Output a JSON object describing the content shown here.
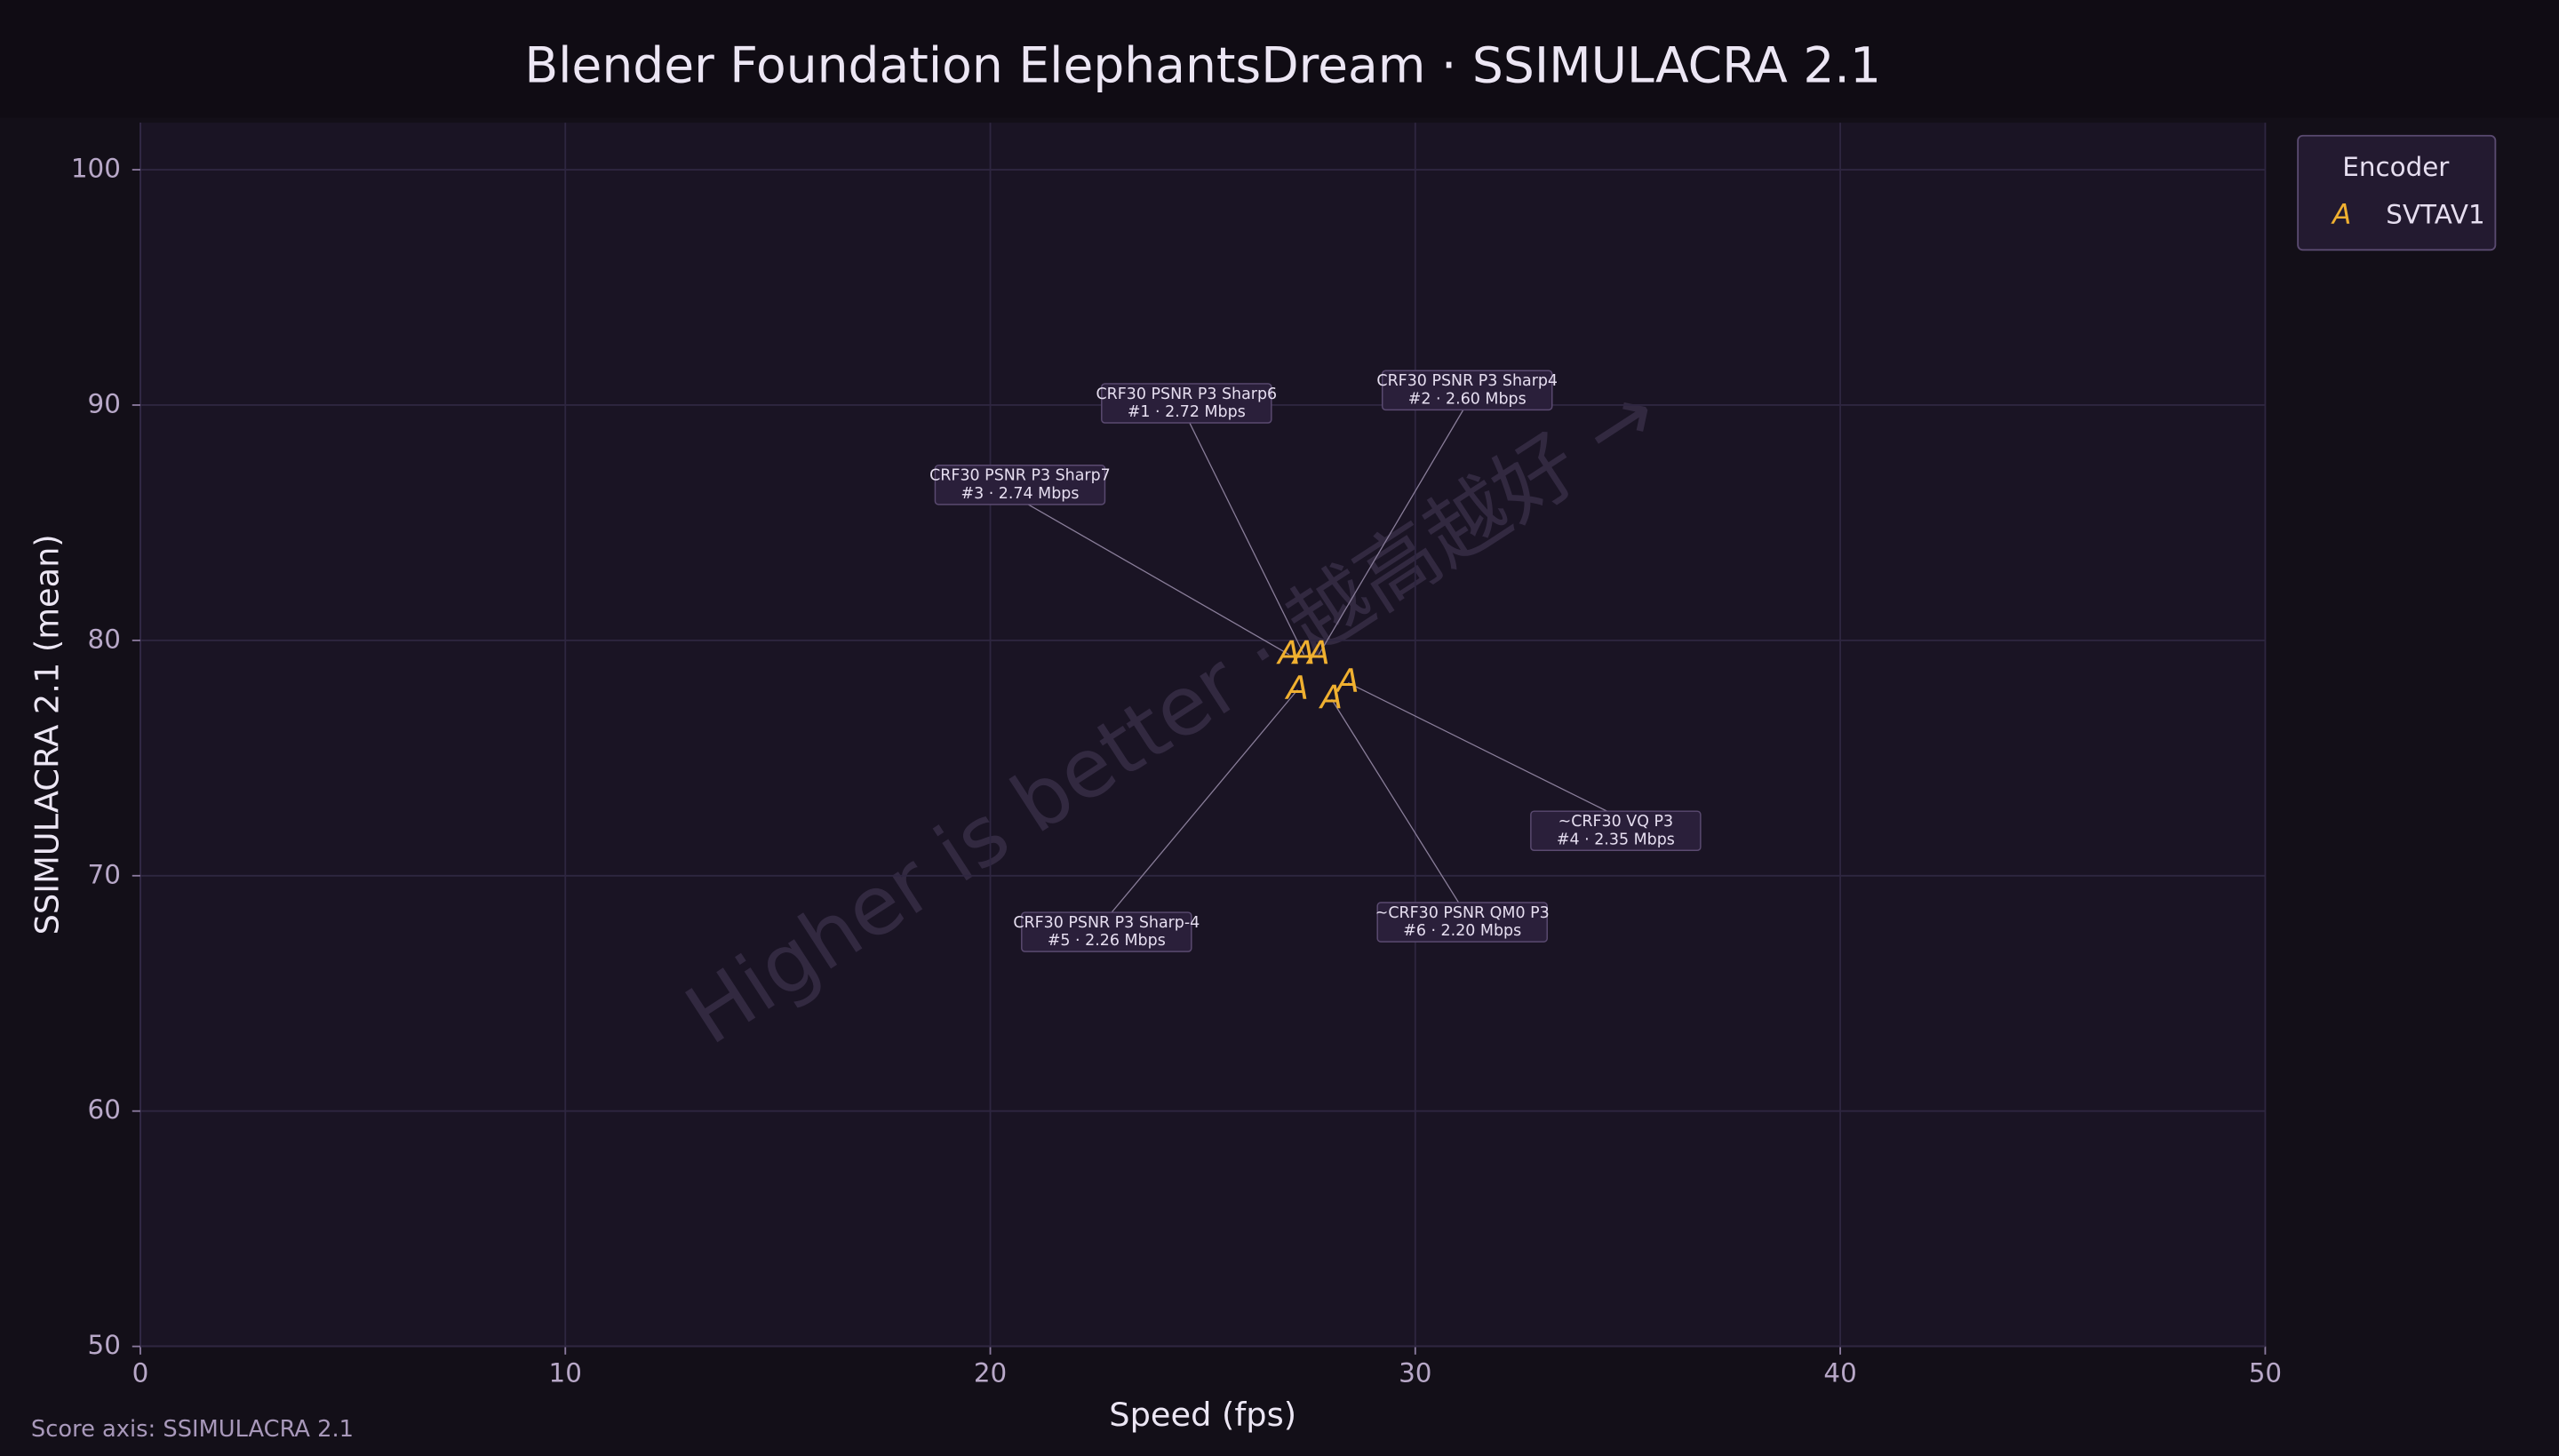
{
  "chart_data": {
    "type": "scatter",
    "title": "Blender Foundation ElephantsDream · SSIMULACRA 2.1",
    "x_label": "Speed (fps)",
    "y_label": "SSIMULACRA 2.1 (mean)",
    "footnote": "Score axis: SSIMULACRA 2.1",
    "watermark": "Higher is better · 越高越好 →",
    "legend_title": "Encoder",
    "legend_position": "outside-right",
    "marker": "A",
    "grid": true,
    "xlim": [
      0,
      50
    ],
    "xticks": [
      0,
      10,
      20,
      30,
      40,
      50
    ],
    "ylim": [
      50,
      102
    ],
    "yticks": [
      50,
      60,
      70,
      80,
      90,
      100
    ],
    "series": [
      {
        "name": "SVTAV1",
        "color": "#f0b030",
        "x": [
          27.38,
          27.73,
          27.03,
          28.42,
          27.23,
          28.03
        ],
        "values": [
          79.4,
          79.4,
          79.4,
          78.2,
          77.9,
          77.5
        ],
        "point_labels": [
          [
            "CRF30 PSNR P3 Sharp6",
            "#1 · 2.72 Mbps"
          ],
          [
            "CRF30 PSNR P3 Sharp4",
            "#2 · 2.60 Mbps"
          ],
          [
            "CRF30 PSNR P3 Sharp7",
            "#3 · 2.74 Mbps"
          ],
          [
            "~CRF30 VQ P3",
            "#4 · 2.35 Mbps"
          ],
          [
            "CRF30 PSNR P3 Sharp-4",
            "#5 · 2.26 Mbps"
          ],
          [
            "~CRF30 PSNR QM0 P3",
            "#6 · 2.20 Mbps"
          ]
        ]
      }
    ]
  }
}
